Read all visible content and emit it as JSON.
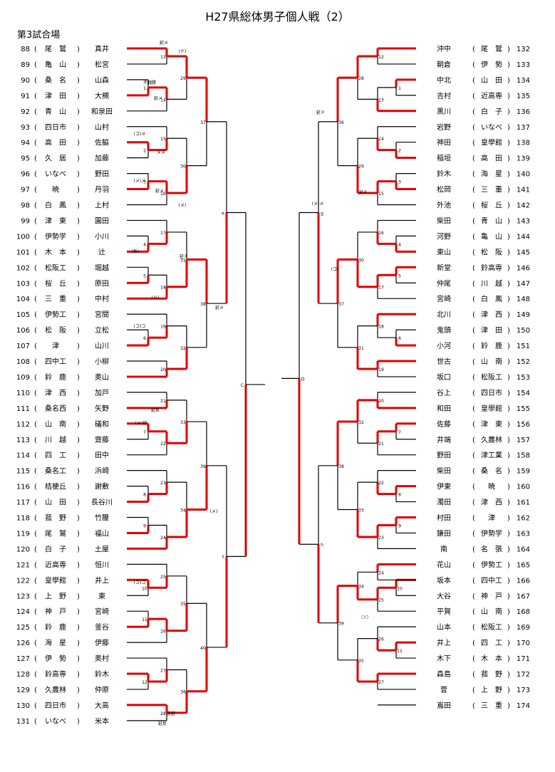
{
  "title": "H27県総体男子個人戦（2）",
  "subtitle": "第3試合場",
  "left_players": [
    {
      "no": "88",
      "school": "尾　鷲",
      "name": "真井"
    },
    {
      "no": "89",
      "school": "亀　山",
      "name": "松宮"
    },
    {
      "no": "90",
      "school": "桑　名",
      "name": "山森"
    },
    {
      "no": "91",
      "school": "津　田",
      "name": "大槻"
    },
    {
      "no": "92",
      "school": "青　山",
      "name": "和泉田"
    },
    {
      "no": "93",
      "school": "四日市",
      "name": "山村"
    },
    {
      "no": "94",
      "school": "高　田",
      "name": "佐脇"
    },
    {
      "no": "95",
      "school": "久　居",
      "name": "加藤"
    },
    {
      "no": "96",
      "school": "いなべ",
      "name": "野田"
    },
    {
      "no": "97",
      "school": "暁",
      "name": "丹羽"
    },
    {
      "no": "98",
      "school": "白　鳳",
      "name": "上村"
    },
    {
      "no": "99",
      "school": "津　東",
      "name": "園田"
    },
    {
      "no": "100",
      "school": "伊勢学",
      "name": "小川"
    },
    {
      "no": "101",
      "school": "木　本",
      "name": "辻"
    },
    {
      "no": "102",
      "school": "松阪工",
      "name": "堀越"
    },
    {
      "no": "103",
      "school": "桜　丘",
      "name": "原田"
    },
    {
      "no": "104",
      "school": "三　重",
      "name": "中村"
    },
    {
      "no": "105",
      "school": "伊勢工",
      "name": "宮間"
    },
    {
      "no": "106",
      "school": "松　阪",
      "name": "立松"
    },
    {
      "no": "107",
      "school": "津",
      "name": "山川"
    },
    {
      "no": "108",
      "school": "四中工",
      "name": "小柳"
    },
    {
      "no": "109",
      "school": "鈴　鹿",
      "name": "奥山"
    },
    {
      "no": "110",
      "school": "津　西",
      "name": "加戸"
    },
    {
      "no": "111",
      "school": "桑名西",
      "name": "矢野"
    },
    {
      "no": "112",
      "school": "山　南",
      "name": "礒和"
    },
    {
      "no": "113",
      "school": "川　越",
      "name": "齋藤"
    },
    {
      "no": "114",
      "school": "四　工",
      "name": "田中"
    },
    {
      "no": "115",
      "school": "桑名工",
      "name": "浜崎"
    },
    {
      "no": "116",
      "school": "桔梗丘",
      "name": "謝敷"
    },
    {
      "no": "117",
      "school": "山　田",
      "name": "長谷川"
    },
    {
      "no": "118",
      "school": "菰　野",
      "name": "竹腰"
    },
    {
      "no": "119",
      "school": "尾　鷲",
      "name": "福山"
    },
    {
      "no": "120",
      "school": "白　子",
      "name": "土屋"
    },
    {
      "no": "121",
      "school": "近高専",
      "name": "恒川"
    },
    {
      "no": "122",
      "school": "皇學館",
      "name": "井上"
    },
    {
      "no": "123",
      "school": "上　野",
      "name": "東"
    },
    {
      "no": "124",
      "school": "神　戸",
      "name": "宮崎"
    },
    {
      "no": "125",
      "school": "鈴　鹿",
      "name": "釜谷"
    },
    {
      "no": "126",
      "school": "海　星",
      "name": "伊藤"
    },
    {
      "no": "127",
      "school": "伊　勢",
      "name": "奥村"
    },
    {
      "no": "128",
      "school": "鈴高専",
      "name": "鈴木"
    },
    {
      "no": "129",
      "school": "久農林",
      "name": "仲原"
    },
    {
      "no": "130",
      "school": "四日市",
      "name": "大高"
    },
    {
      "no": "131",
      "school": "いなべ",
      "name": "米本"
    }
  ],
  "right_players": [
    {
      "no": "132",
      "school": "尾　鷲",
      "name": "沖中"
    },
    {
      "no": "133",
      "school": "伊　勢",
      "name": "朝倉"
    },
    {
      "no": "134",
      "school": "山　田",
      "name": "中北"
    },
    {
      "no": "135",
      "school": "近高専",
      "name": "吉村"
    },
    {
      "no": "136",
      "school": "白　子",
      "name": "黒川"
    },
    {
      "no": "137",
      "school": "いなべ",
      "name": "岩野"
    },
    {
      "no": "138",
      "school": "皇學館",
      "name": "神田"
    },
    {
      "no": "139",
      "school": "高　田",
      "name": "稲垣"
    },
    {
      "no": "140",
      "school": "海　星",
      "name": "鈴木"
    },
    {
      "no": "141",
      "school": "三　重",
      "name": "松岡"
    },
    {
      "no": "142",
      "school": "桜　丘",
      "name": "外池"
    },
    {
      "no": "143",
      "school": "青　山",
      "name": "柴田"
    },
    {
      "no": "144",
      "school": "亀　山",
      "name": "河野"
    },
    {
      "no": "145",
      "school": "松　阪",
      "name": "東山"
    },
    {
      "no": "146",
      "school": "鈴高専",
      "name": "新堂"
    },
    {
      "no": "147",
      "school": "川　越",
      "name": "仲尾"
    },
    {
      "no": "148",
      "school": "白　鳳",
      "name": "宮崎"
    },
    {
      "no": "149",
      "school": "津　西",
      "name": "北川"
    },
    {
      "no": "150",
      "school": "津　田",
      "name": "鬼頭"
    },
    {
      "no": "151",
      "school": "鈴　鹿",
      "name": "小河"
    },
    {
      "no": "152",
      "school": "山　南",
      "name": "世古"
    },
    {
      "no": "153",
      "school": "松阪工",
      "name": "坂口"
    },
    {
      "no": "154",
      "school": "四日市",
      "name": "谷上"
    },
    {
      "no": "155",
      "school": "皇學館",
      "name": "和田"
    },
    {
      "no": "156",
      "school": "津　東",
      "name": "佐藤"
    },
    {
      "no": "157",
      "school": "久農林",
      "name": "井端"
    },
    {
      "no": "158",
      "school": "津工業",
      "name": "野田"
    },
    {
      "no": "159",
      "school": "桑　名",
      "name": "柴田"
    },
    {
      "no": "160",
      "school": "暁",
      "name": "伊東"
    },
    {
      "no": "161",
      "school": "津　西",
      "name": "濁田"
    },
    {
      "no": "162",
      "school": "津",
      "name": "村田"
    },
    {
      "no": "163",
      "school": "伊勢学",
      "name": "鎌田"
    },
    {
      "no": "164",
      "school": "名　張",
      "name": "南"
    },
    {
      "no": "165",
      "school": "伊勢工",
      "name": "花山"
    },
    {
      "no": "166",
      "school": "四中工",
      "name": "坂本"
    },
    {
      "no": "167",
      "school": "神　戸",
      "name": "大谷"
    },
    {
      "no": "168",
      "school": "山　南",
      "name": "平賀"
    },
    {
      "no": "169",
      "school": "松阪工",
      "name": "山本"
    },
    {
      "no": "170",
      "school": "四　工",
      "name": "井上"
    },
    {
      "no": "171",
      "school": "木　本",
      "name": "木下"
    },
    {
      "no": "172",
      "school": "菰　野",
      "name": "森島"
    },
    {
      "no": "173",
      "school": "上　野",
      "name": "菅"
    },
    {
      "no": "174",
      "school": "三　重",
      "name": "嶌田"
    }
  ],
  "match_labels": {
    "1": "1",
    "2": "2",
    "3": "3",
    "4": "4",
    "5": "5",
    "6": "6",
    "7": "7",
    "8": "8",
    "9": "9",
    "10": "10",
    "11": "11",
    "12": "12",
    "13": "13",
    "14": "14",
    "15": "15",
    "16": "16",
    "17": "17",
    "18": "18",
    "19": "19",
    "20": "20",
    "21": "21",
    "22": "22",
    "23": "23",
    "24": "24",
    "25": "25",
    "26": "26",
    "27": "27",
    "28": "28",
    "29": "29",
    "30": "30",
    "31": "31",
    "32": "32",
    "33": "33",
    "34": "34",
    "35": "35",
    "36": "36",
    "37": "37",
    "38": "38",
    "39": "39",
    "40": "40",
    "e": "e",
    "f": "f",
    "g": "g",
    "h": "h",
    "C": "C",
    "D": "D"
  },
  "score_marks": [
    "延メ",
    "(ド)",
    "不戦勝",
    "延メ",
    "(コ)メ",
    "メメ",
    "(メ)メ",
    "延メ",
    "(メ)",
    "(メ)メ",
    "(反)",
    "延ド",
    "延ド",
    "(コ)コ",
    "(ド)",
    "(コ)",
    "延メ",
    "延反",
    "(メ)延",
    "(メ)",
    "(コ)コ",
    "反延",
    "延反",
    "○○",
    "延ド"
  ]
}
